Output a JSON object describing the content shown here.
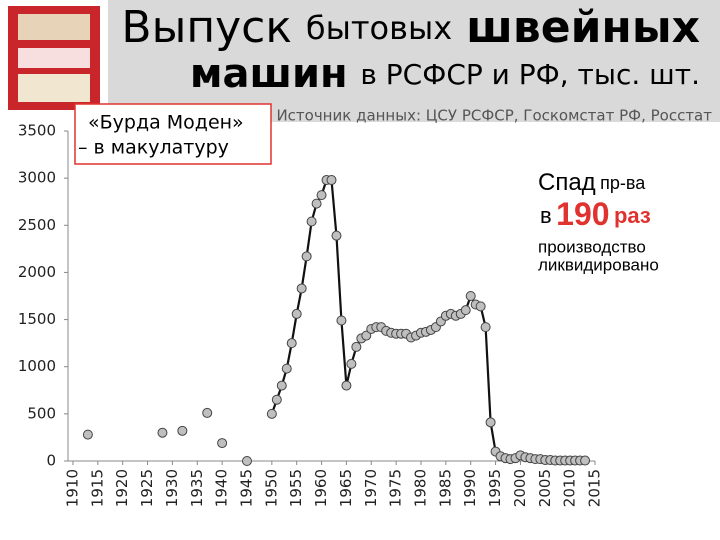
{
  "chart_data": {
    "type": "line",
    "title": [
      "Выпуск",
      "бытовых",
      "швейных",
      "машин",
      "в РСФСР и РФ, тыс. шт."
    ],
    "subtitle": "Источник данных: ЦСУ РСФСР, Госкомстат РФ, Росстат",
    "annotations": [
      {
        "lines": [
          "«Бурда Моден»",
          "– в макулатуру"
        ]
      },
      {
        "lines": [
          "Спад",
          "пр-ва",
          "в",
          "190",
          "раз",
          "производство",
          "ликвидировано"
        ]
      }
    ],
    "xlim": [
      1909,
      2015
    ],
    "ylim": [
      0,
      3500
    ],
    "xticks": [
      1910,
      1915,
      1920,
      1925,
      1930,
      1935,
      1940,
      1945,
      1950,
      1955,
      1960,
      1965,
      1970,
      1975,
      1980,
      1985,
      1990,
      1995,
      2000,
      2005,
      2010,
      2015
    ],
    "yticks": [
      0,
      500,
      1000,
      1500,
      2000,
      2500,
      3000,
      3500
    ],
    "grid": false,
    "series": [
      {
        "color": "#bfbfbf",
        "line": false,
        "x": [
          1913,
          1928,
          1932,
          1937,
          1940,
          1945
        ],
        "values": [
          280,
          300,
          320,
          510,
          190,
          0
        ]
      },
      {
        "color": "#bfbfbf",
        "line": true,
        "x": [
          1950,
          1951,
          1952,
          1953,
          1954,
          1955,
          1956,
          1957,
          1958,
          1959,
          1960,
          1961,
          1962,
          1963,
          1964,
          1965,
          1966,
          1967,
          1968,
          1969,
          1970,
          1971,
          1972,
          1973,
          1974,
          1975,
          1976,
          1977,
          1978,
          1979,
          1980,
          1981,
          1982,
          1983,
          1984,
          1985,
          1986,
          1987,
          1988,
          1989,
          1990,
          1991,
          1992,
          1993,
          1994,
          1995,
          1996,
          1997,
          1998,
          1999,
          2000,
          2001,
          2002,
          2003,
          2004,
          2005,
          2006,
          2007,
          2008,
          2009,
          2010,
          2011,
          2012,
          2013
        ],
        "values": [
          500,
          650,
          800,
          980,
          1250,
          1560,
          1830,
          2170,
          2540,
          2730,
          2820,
          2980,
          2980,
          2390,
          1490,
          800,
          1030,
          1210,
          1300,
          1330,
          1400,
          1420,
          1420,
          1380,
          1360,
          1350,
          1350,
          1350,
          1310,
          1330,
          1360,
          1370,
          1390,
          1420,
          1480,
          1540,
          1560,
          1540,
          1560,
          1600,
          1750,
          1660,
          1640,
          1420,
          410,
          100,
          50,
          30,
          20,
          30,
          60,
          40,
          30,
          20,
          20,
          10,
          10,
          5,
          5,
          5,
          5,
          5,
          5,
          5
        ]
      }
    ]
  }
}
